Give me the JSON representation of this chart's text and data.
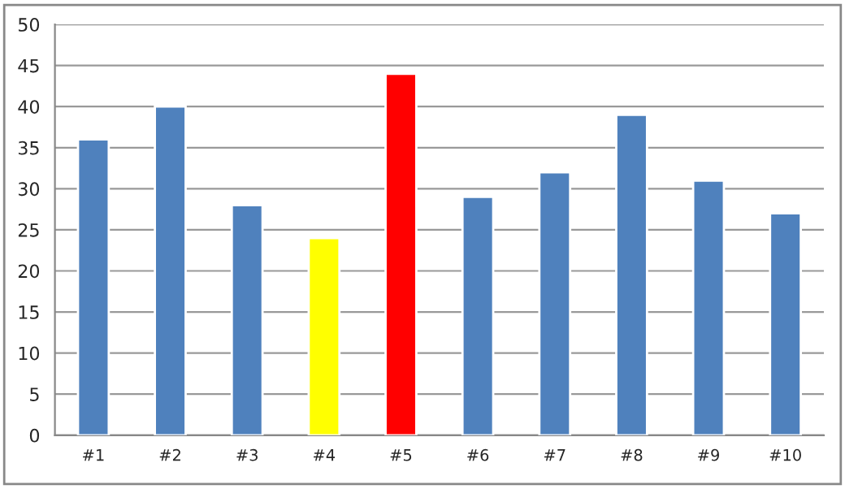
{
  "chart_data": {
    "type": "bar",
    "categories": [
      "#1",
      "#2",
      "#3",
      "#4",
      "#5",
      "#6",
      "#7",
      "#8",
      "#9",
      "#10"
    ],
    "values": [
      36,
      40,
      28,
      24,
      44,
      29,
      32,
      39,
      31,
      27
    ],
    "colors": [
      "#4f81bd",
      "#4f81bd",
      "#4f81bd",
      "#ffff00",
      "#ff0000",
      "#4f81bd",
      "#4f81bd",
      "#4f81bd",
      "#4f81bd",
      "#4f81bd"
    ],
    "ylim": [
      0,
      50
    ],
    "yticks": [
      0,
      5,
      10,
      15,
      20,
      25,
      30,
      35,
      40,
      45,
      50
    ],
    "grid": "y",
    "legend": false
  }
}
